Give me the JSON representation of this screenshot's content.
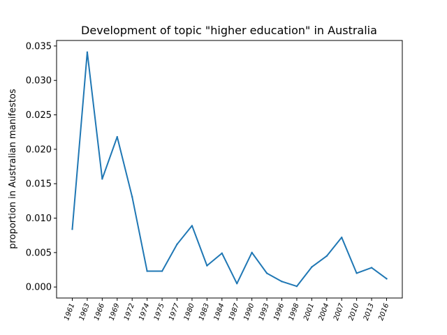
{
  "chart_data": {
    "type": "line",
    "title": "Development of topic \"higher education\" in Australia",
    "xlabel": "",
    "ylabel": "proportion in Australian manifestos",
    "categories": [
      "1961",
      "1963",
      "1966",
      "1969",
      "1972",
      "1974",
      "1975",
      "1977",
      "1980",
      "1983",
      "1984",
      "1987",
      "1990",
      "1993",
      "1996",
      "1998",
      "2001",
      "2004",
      "2007",
      "2010",
      "2013",
      "2016"
    ],
    "series": [
      {
        "values": [
          0.0084,
          0.0341,
          0.0157,
          0.0218,
          0.0131,
          0.0023,
          0.0023,
          0.0062,
          0.0089,
          0.0031,
          0.0049,
          0.0005,
          0.005,
          0.002,
          0.0008,
          0.0001,
          0.0029,
          0.0045,
          0.0072,
          0.002,
          0.0028,
          0.0012
        ],
        "color": "#1f77b4"
      }
    ],
    "yticks": [
      "0.000",
      "0.005",
      "0.010",
      "0.015",
      "0.020",
      "0.025",
      "0.030",
      "0.035"
    ],
    "ytick_values": [
      0.0,
      0.005,
      0.01,
      0.015,
      0.02,
      0.025,
      0.03,
      0.035
    ],
    "ylim": [
      -0.0016,
      0.0358
    ],
    "grid": false,
    "legend": "none"
  }
}
